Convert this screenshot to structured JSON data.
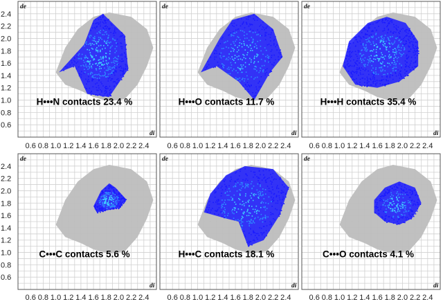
{
  "figure": {
    "x_ticks": [
      "0.6",
      "0.8",
      "1.0",
      "1.2",
      "1.4",
      "1.6",
      "1.8",
      "2.0",
      "2.2",
      "2.4"
    ],
    "y_ticks": [
      "2.4",
      "2.2",
      "2.0",
      "1.8",
      "1.6",
      "1.4",
      "1.2",
      "1.0",
      "0.8",
      "0.6"
    ],
    "colors": {
      "grid": "#d0d0d0",
      "background_points": "#bdbdbd",
      "highlight_low": "#1a1aff",
      "highlight_high": "#3fd0ff"
    }
  },
  "chart_data": [
    {
      "type": "scatter",
      "xlabel": "di",
      "ylabel": "de",
      "xlim": [
        0.4,
        2.6
      ],
      "ylim": [
        0.4,
        2.6
      ],
      "grid": true,
      "label": "H•••N contacts 23.4 %",
      "contact": "H•••N",
      "percent": 23.4,
      "highlight_region": [
        [
          1.05,
          1.45
        ],
        [
          1.45,
          1.9
        ],
        [
          1.6,
          2.3
        ],
        [
          1.75,
          2.4
        ],
        [
          1.95,
          2.2
        ],
        [
          2.1,
          2.05
        ],
        [
          2.15,
          1.5
        ],
        [
          1.85,
          1.05
        ],
        [
          1.5,
          1.1
        ],
        [
          1.3,
          1.55
        ]
      ]
    },
    {
      "type": "scatter",
      "xlabel": "di",
      "ylabel": "de",
      "xlim": [
        0.4,
        2.6
      ],
      "ylim": [
        0.4,
        2.6
      ],
      "grid": true,
      "label": "H•••O contacts 11.7 %",
      "contact": "H•••O",
      "percent": 11.7,
      "highlight_region": [
        [
          1.05,
          1.45
        ],
        [
          1.35,
          2.0
        ],
        [
          1.55,
          2.3
        ],
        [
          1.9,
          2.4
        ],
        [
          2.2,
          2.15
        ],
        [
          2.35,
          1.7
        ],
        [
          2.15,
          1.45
        ],
        [
          1.9,
          1.0
        ],
        [
          1.65,
          1.3
        ],
        [
          1.3,
          1.55
        ]
      ]
    },
    {
      "type": "scatter",
      "xlabel": "di",
      "ylabel": "de",
      "xlim": [
        0.4,
        2.6
      ],
      "ylim": [
        0.4,
        2.6
      ],
      "grid": true,
      "label": "H•••H contacts 35.4 %",
      "contact": "H•••H",
      "percent": 35.4,
      "highlight_region": [
        [
          1.05,
          1.55
        ],
        [
          1.15,
          1.95
        ],
        [
          1.45,
          2.25
        ],
        [
          1.75,
          2.35
        ],
        [
          2.05,
          2.25
        ],
        [
          2.25,
          1.95
        ],
        [
          2.25,
          1.55
        ],
        [
          1.95,
          1.3
        ],
        [
          1.6,
          1.2
        ],
        [
          1.25,
          1.25
        ]
      ]
    },
    {
      "type": "scatter",
      "xlabel": "di",
      "ylabel": "de",
      "xlim": [
        0.4,
        2.6
      ],
      "ylim": [
        0.4,
        2.6
      ],
      "grid": true,
      "label": "C•••C contacts 5.6 %",
      "contact": "C•••C",
      "percent": 5.6,
      "highlight_region": [
        [
          1.6,
          1.75
        ],
        [
          1.72,
          2.0
        ],
        [
          1.85,
          2.12
        ],
        [
          1.95,
          2.05
        ],
        [
          2.12,
          1.86
        ],
        [
          2.0,
          1.72
        ],
        [
          1.8,
          1.68
        ],
        [
          1.65,
          1.65
        ]
      ]
    },
    {
      "type": "scatter",
      "xlabel": "di",
      "ylabel": "de",
      "xlim": [
        0.4,
        2.6
      ],
      "ylim": [
        0.4,
        2.6
      ],
      "grid": true,
      "label": "H•••C contacts 18.1 %",
      "contact": "H•••C",
      "percent": 18.1,
      "highlight_region": [
        [
          1.1,
          1.65
        ],
        [
          1.2,
          1.95
        ],
        [
          1.45,
          2.25
        ],
        [
          1.75,
          2.4
        ],
        [
          2.2,
          2.35
        ],
        [
          2.45,
          2.05
        ],
        [
          2.3,
          1.6
        ],
        [
          2.05,
          1.2
        ],
        [
          1.8,
          1.1
        ],
        [
          1.65,
          1.5
        ],
        [
          1.45,
          1.55
        ]
      ]
    },
    {
      "type": "scatter",
      "xlabel": "di",
      "ylabel": "de",
      "xlim": [
        0.4,
        2.6
      ],
      "ylim": [
        0.4,
        2.6
      ],
      "grid": true,
      "label": "C•••O contacts 4.1 %",
      "contact": "C•••O",
      "percent": 4.1,
      "highlight_region": [
        [
          1.55,
          1.85
        ],
        [
          1.72,
          2.05
        ],
        [
          1.95,
          2.15
        ],
        [
          2.2,
          2.05
        ],
        [
          2.3,
          1.8
        ],
        [
          2.15,
          1.55
        ],
        [
          1.95,
          1.45
        ],
        [
          1.72,
          1.5
        ],
        [
          1.55,
          1.65
        ]
      ]
    }
  ]
}
